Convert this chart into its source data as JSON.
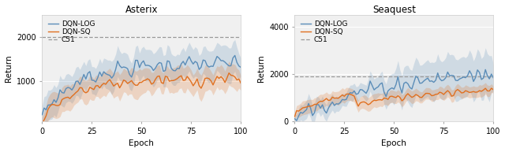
{
  "title_left": "Asterix",
  "title_right": "Seaquest",
  "xlabel": "Epoch",
  "ylabel": "Return",
  "legend_labels": [
    "DQN-LOG",
    "DQN-SQ",
    "C51"
  ],
  "blue_color": "#5B8DB8",
  "orange_color": "#E07020",
  "c51_color": "#999999",
  "blue_fill_alpha": 0.22,
  "orange_fill_alpha": 0.22,
  "asterix_c51": 2000,
  "seaquest_c51": 1900,
  "xlim": [
    0,
    100
  ],
  "asterix_ylim": [
    100,
    2500
  ],
  "seaquest_ylim": [
    0,
    4500
  ],
  "asterix_yticks": [
    1000,
    2000
  ],
  "seaquest_yticks": [
    0,
    2000,
    4000
  ],
  "xticks": [
    0,
    25,
    50,
    75,
    100
  ],
  "n_epochs": 101,
  "bg_color": "#f0f0f0"
}
